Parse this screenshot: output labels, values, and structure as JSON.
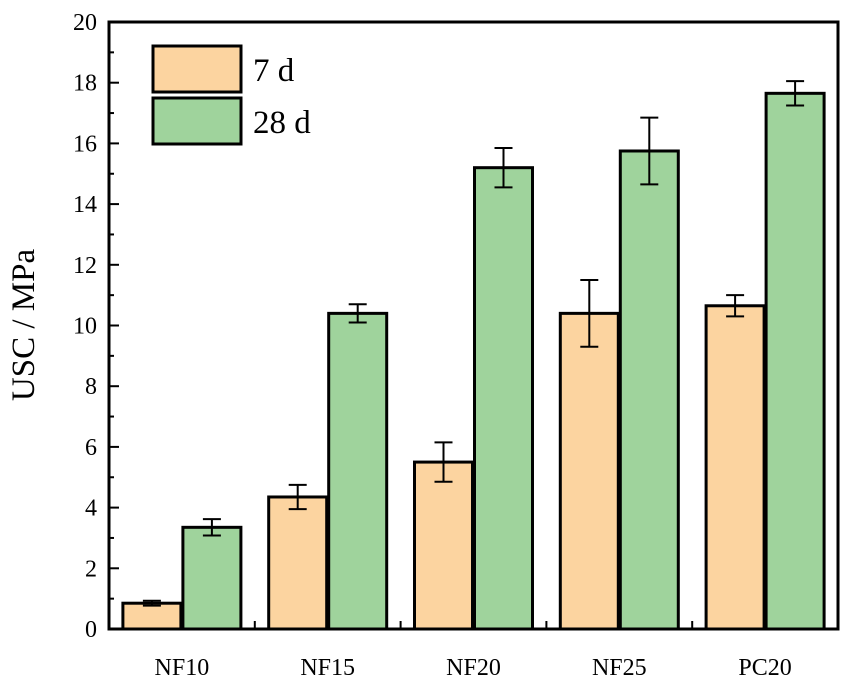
{
  "chart_data": {
    "type": "bar",
    "title": "",
    "xlabel": "",
    "ylabel": "USC / MPa",
    "ylim": [
      0,
      20
    ],
    "yticks": [
      0,
      2,
      4,
      6,
      8,
      10,
      12,
      14,
      16,
      18,
      20
    ],
    "categories": [
      "NF10",
      "NF15",
      "NF20",
      "NF25",
      "PC20"
    ],
    "series": [
      {
        "name": "7 d",
        "color": "#fcd4a0",
        "values": [
          0.85,
          4.35,
          5.5,
          10.4,
          10.65
        ],
        "errors": [
          0.08,
          0.4,
          0.65,
          1.1,
          0.35
        ]
      },
      {
        "name": "28 d",
        "color": "#9fd39c",
        "values": [
          3.35,
          10.4,
          15.2,
          15.75,
          17.65
        ],
        "errors": [
          0.27,
          0.3,
          0.65,
          1.1,
          0.4
        ]
      }
    ],
    "legend_position": "top-left",
    "grid": false
  }
}
